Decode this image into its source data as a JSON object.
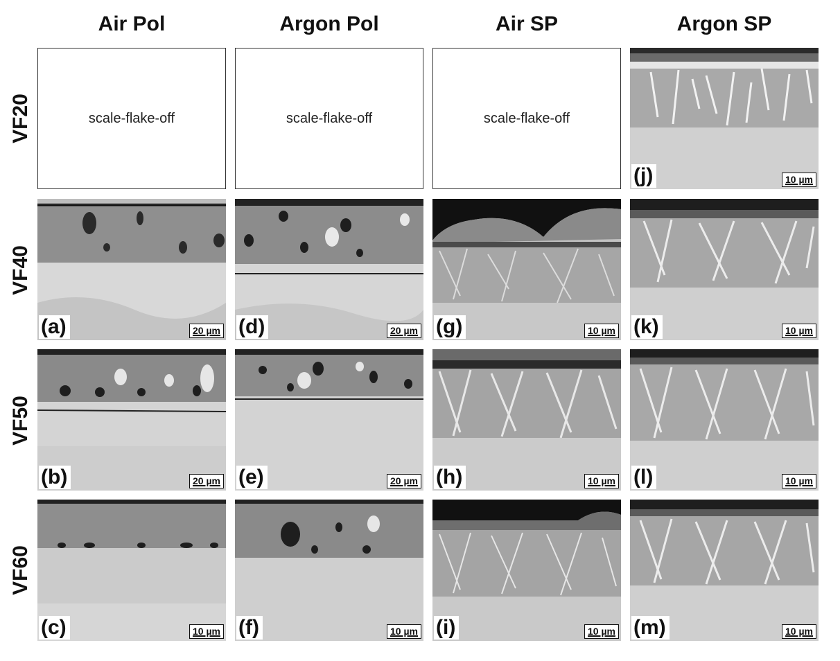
{
  "columns": [
    "Air Pol",
    "Argon Pol",
    "Air SP",
    "Argon SP"
  ],
  "rows": [
    "VF20",
    "VF40",
    "VF50",
    "VF60"
  ],
  "panels": {
    "VF20": [
      {
        "message": "scale-flake-off"
      },
      {
        "message": "scale-flake-off"
      },
      {
        "message": "scale-flake-off"
      },
      {
        "letter": "(j)",
        "scale": "10 µm"
      }
    ],
    "VF40": [
      {
        "letter": "(a)",
        "scale": "20 µm"
      },
      {
        "letter": "(d)",
        "scale": "20 µm"
      },
      {
        "letter": "(g)",
        "scale": "10 µm"
      },
      {
        "letter": "(k)",
        "scale": "10 µm"
      }
    ],
    "VF50": [
      {
        "letter": "(b)",
        "scale": "20 µm"
      },
      {
        "letter": "(e)",
        "scale": "20 µm"
      },
      {
        "letter": "(h)",
        "scale": "10 µm"
      },
      {
        "letter": "(l)",
        "scale": "10 µm"
      }
    ],
    "VF60": [
      {
        "letter": "(c)",
        "scale": "10 µm"
      },
      {
        "letter": "(f)",
        "scale": "10 µm"
      },
      {
        "letter": "(i)",
        "scale": "10 µm"
      },
      {
        "letter": "(m)",
        "scale": "10 µm"
      }
    ]
  }
}
